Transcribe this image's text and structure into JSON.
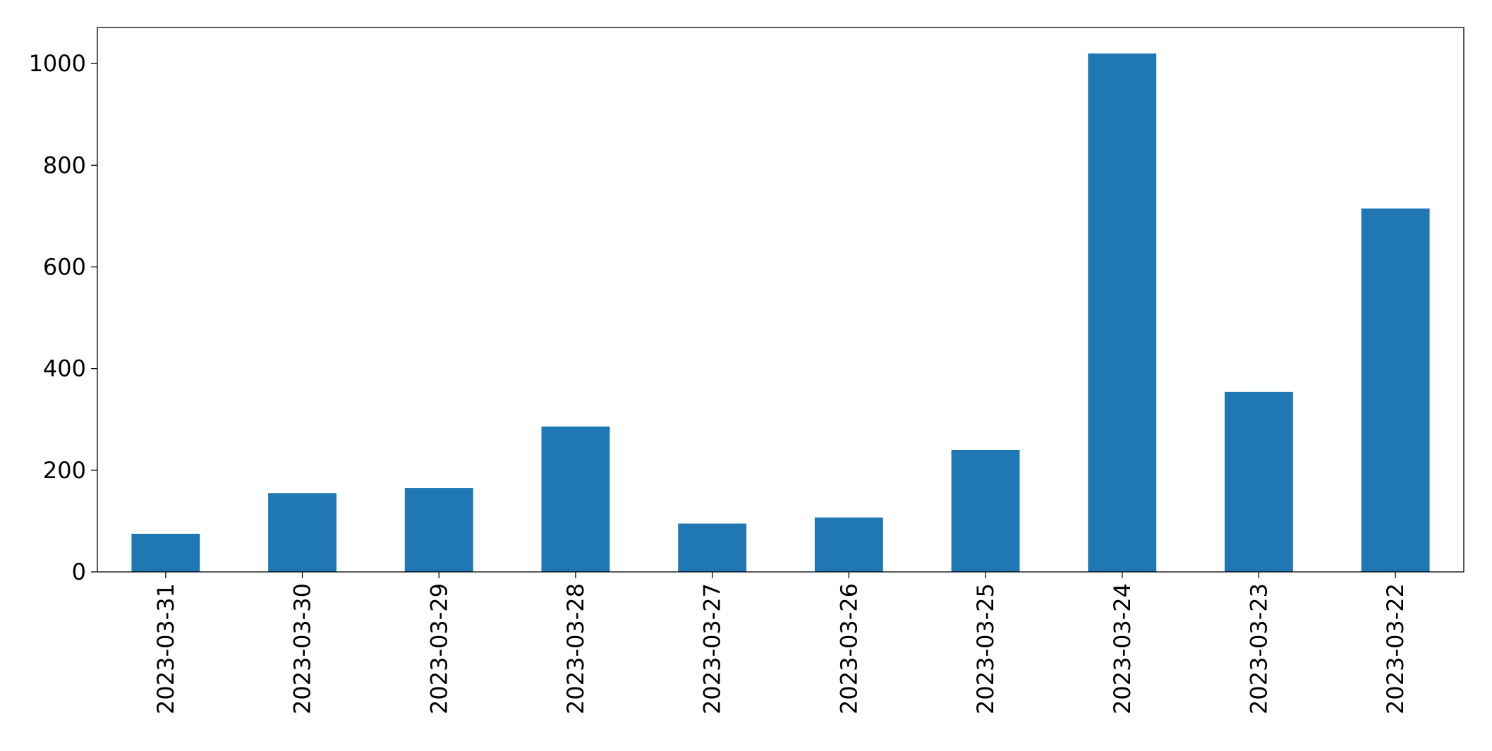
{
  "chart_data": {
    "type": "bar",
    "categories": [
      "2023-03-31",
      "2023-03-30",
      "2023-03-29",
      "2023-03-28",
      "2023-03-27",
      "2023-03-26",
      "2023-03-25",
      "2023-03-24",
      "2023-03-23",
      "2023-03-22"
    ],
    "values": [
      75,
      155,
      165,
      286,
      95,
      107,
      240,
      1020,
      354,
      715
    ],
    "color": "#1f77b4",
    "ylim": [
      0,
      1071
    ],
    "yticks": [
      0,
      200,
      400,
      600,
      800,
      1000
    ],
    "grid": false
  }
}
